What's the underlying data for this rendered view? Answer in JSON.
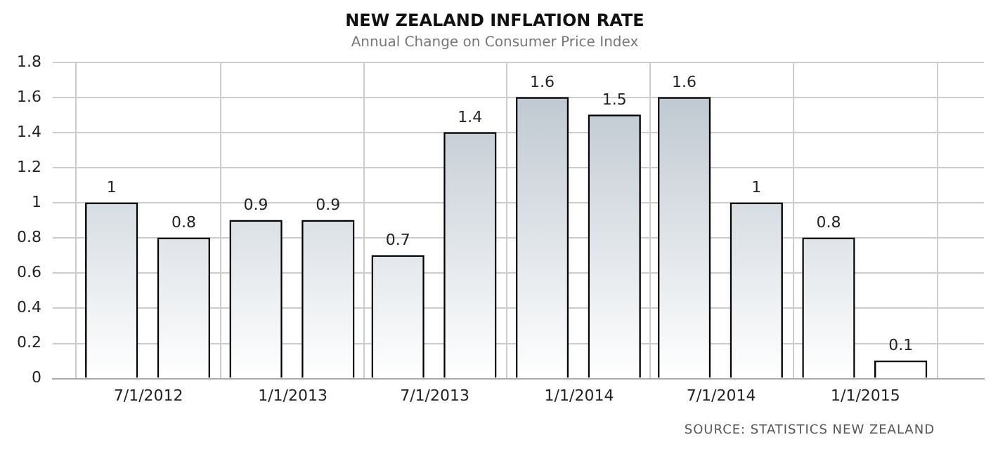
{
  "chart_data": {
    "type": "bar",
    "title": "NEW ZEALAND INFLATION RATE",
    "subtitle": "Annual Change on Consumer Price Index",
    "x": [
      "2012-05-15",
      "2012-08-15",
      "2012-11-15",
      "2013-02-15",
      "2013-05-15",
      "2013-08-15",
      "2013-11-15",
      "2014-02-15",
      "2014-05-15",
      "2014-08-15",
      "2014-11-15",
      "2015-02-15"
    ],
    "values": [
      1,
      0.8,
      0.9,
      0.9,
      0.7,
      1.4,
      1.6,
      1.5,
      1.6,
      1,
      0.8,
      0.1
    ],
    "color": "#b8c2cc",
    "xlim": [
      "2012-03-01",
      "2015-06-01"
    ],
    "xticks": [
      {
        "value": "2012-07-01",
        "label": "7/1/2012"
      },
      {
        "value": "2013-01-01",
        "label": "1/1/2013"
      },
      {
        "value": "2013-07-01",
        "label": "7/1/2013"
      },
      {
        "value": "2014-01-01",
        "label": "1/1/2014"
      },
      {
        "value": "2014-07-01",
        "label": "7/1/2014"
      },
      {
        "value": "2015-01-01",
        "label": "1/1/2015"
      }
    ],
    "ylim": [
      0,
      1.8
    ],
    "yticks": [
      0,
      0.2,
      0.4,
      0.6,
      0.8,
      1,
      1.2,
      1.4,
      1.6,
      1.8
    ],
    "grid": true,
    "data_labels": true,
    "annotations": [
      "SOURCE: STATISTICS NEW ZEALAND"
    ]
  }
}
